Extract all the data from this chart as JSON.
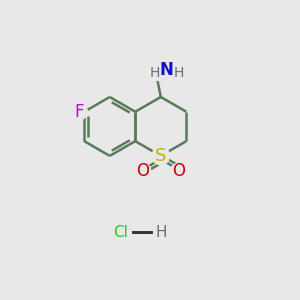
{
  "background_color": "#e8e8e8",
  "bond_color": "#5a7a5a",
  "bond_width": 1.8,
  "colors": {
    "N": "#1010cc",
    "H": "#607080",
    "F": "#cc00cc",
    "S": "#b8b800",
    "O": "#cc0000",
    "Cl": "#22cc22",
    "C": "#5a7a5a"
  },
  "font_size": 11,
  "figsize": [
    3.0,
    3.0
  ],
  "dpi": 100,
  "xlim": [
    0,
    10
  ],
  "ylim": [
    0,
    10
  ]
}
